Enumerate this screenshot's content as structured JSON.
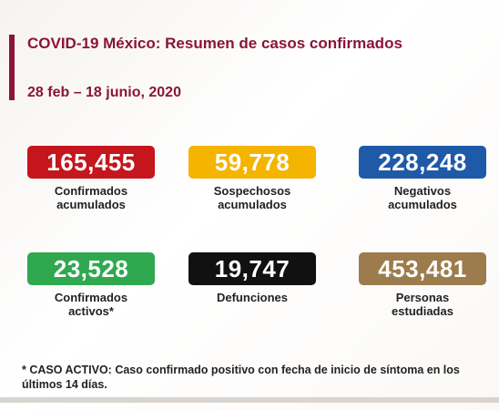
{
  "header": {
    "title": "COVID-19 México: Resumen de casos confirmados",
    "date": "28 feb – 18 junio, 2020"
  },
  "cards": [
    {
      "value": "165,455",
      "label": [
        "Confirmados",
        "acumulados"
      ]
    },
    {
      "value": "59,778",
      "label": [
        "Sospechosos",
        "acumulados"
      ]
    },
    {
      "value": "228,248",
      "label": [
        "Negativos",
        "acumulados"
      ]
    },
    {
      "value": "23,528",
      "label": [
        "Confirmados",
        "activos*"
      ]
    },
    {
      "value": "19,747",
      "label": [
        "Defunciones"
      ]
    },
    {
      "value": "453,481",
      "label": [
        "Personas",
        "estudiadas"
      ]
    }
  ],
  "footnote": "* CASO ACTIVO: Caso confirmado positivo con fecha de inicio de síntoma en los últimos 14 días."
}
